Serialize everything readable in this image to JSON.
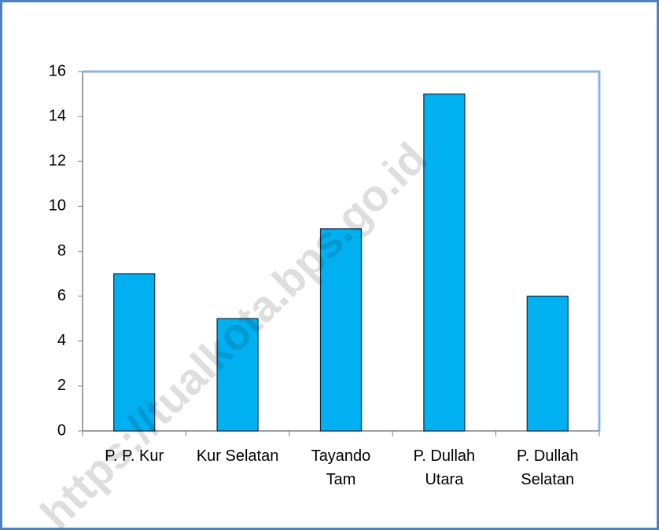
{
  "chart_data": {
    "type": "bar",
    "categories": [
      "P. P. Kur",
      "Kur Selatan",
      "Tayando\nTam",
      "P. Dullah\nUtara",
      "P. Dullah\nSelatan"
    ],
    "values": [
      7,
      5,
      9,
      15,
      6
    ],
    "color": "#00b0f0",
    "ylim": [
      0,
      16
    ],
    "yticks": [
      0,
      2,
      4,
      6,
      8,
      10,
      12,
      14,
      16
    ],
    "grid": false,
    "watermark": "https://tualkota.bps.go.id"
  }
}
